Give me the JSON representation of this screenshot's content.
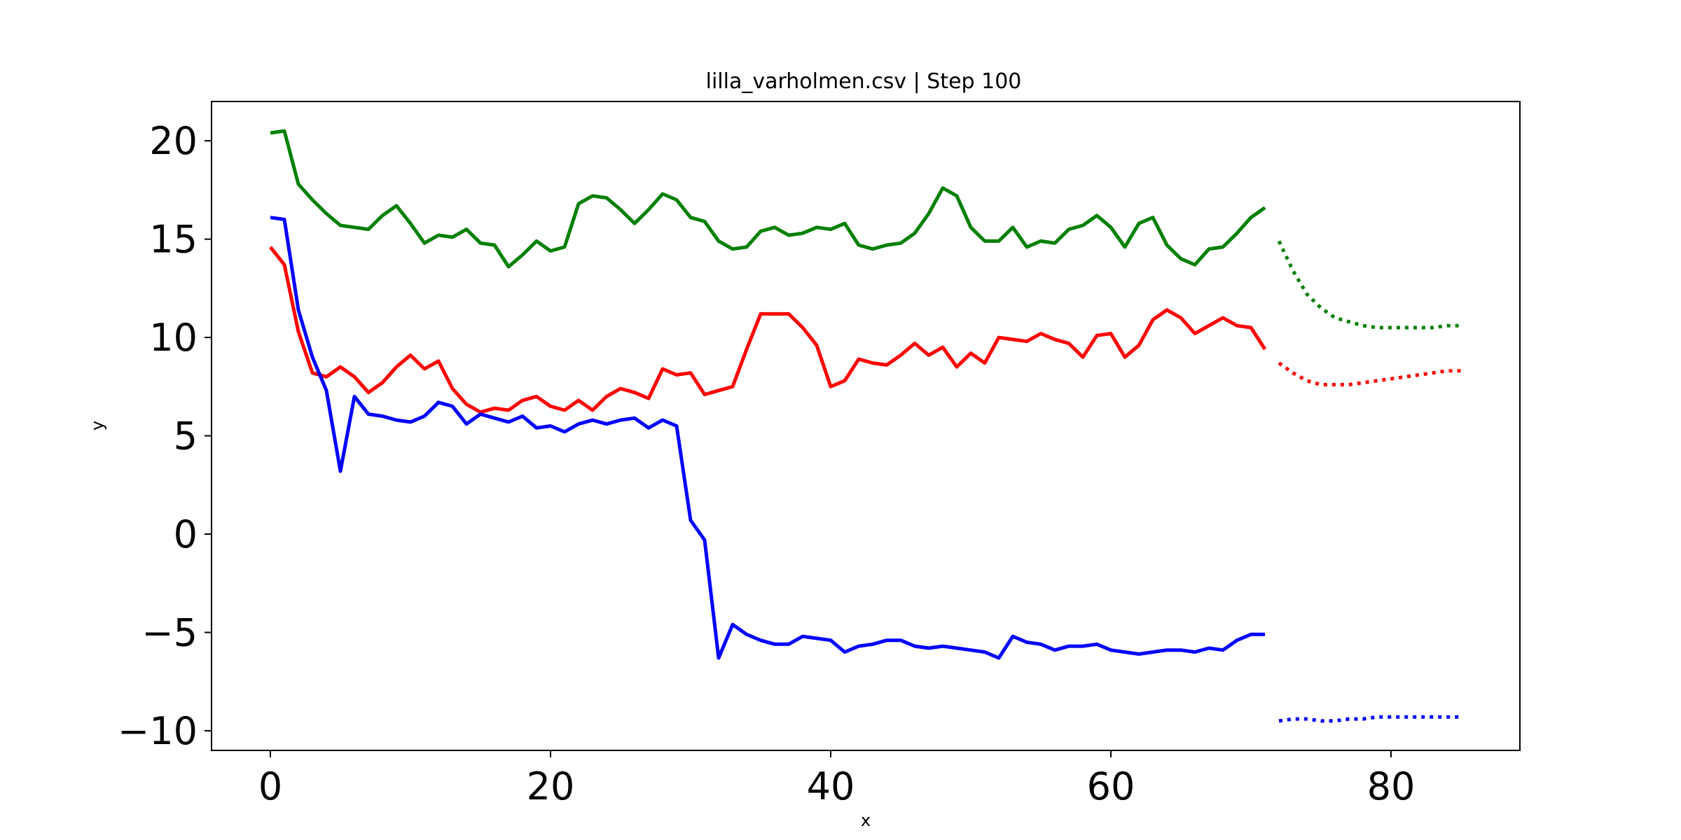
{
  "chart_data": {
    "type": "line",
    "title": "lilla_varholmen.csv | Step 100",
    "xlabel": "x",
    "ylabel": "y",
    "xlim": [
      -4.2,
      89.2
    ],
    "ylim": [
      -11,
      22
    ],
    "xticks": [
      0,
      20,
      40,
      60,
      80
    ],
    "yticks": [
      -10,
      -5,
      0,
      5,
      10,
      15,
      20
    ],
    "grid": false,
    "legend": "none",
    "series": [
      {
        "color": "#008000",
        "style": "solid",
        "x": [
          0,
          1,
          2,
          3,
          4,
          5,
          6,
          7,
          8,
          9,
          10,
          11,
          12,
          13,
          14,
          15,
          16,
          17,
          18,
          19,
          20,
          21,
          22,
          23,
          24,
          25,
          26,
          27,
          28,
          29,
          30,
          31,
          32,
          33,
          34,
          35,
          36,
          37,
          38,
          39,
          40,
          41,
          42,
          43,
          44,
          45,
          46,
          47,
          48,
          49,
          50,
          51,
          52,
          53,
          54,
          55,
          56,
          57,
          58,
          59,
          60,
          61,
          62,
          63,
          64,
          65,
          66,
          67,
          68,
          69,
          70,
          71
        ],
        "y": [
          20.4,
          20.5,
          17.8,
          17.0,
          16.3,
          15.7,
          15.6,
          15.5,
          16.2,
          16.7,
          15.8,
          14.8,
          15.2,
          15.1,
          15.5,
          14.8,
          14.7,
          13.6,
          14.2,
          14.9,
          14.4,
          14.6,
          16.8,
          17.2,
          17.1,
          16.5,
          15.8,
          16.5,
          17.3,
          17.0,
          16.1,
          15.9,
          14.9,
          14.5,
          14.6,
          15.4,
          15.6,
          15.2,
          15.3,
          15.6,
          15.5,
          15.8,
          14.7,
          14.5,
          14.7,
          14.8,
          15.3,
          16.3,
          17.6,
          17.2,
          15.6,
          14.9,
          14.9,
          15.6,
          14.6,
          14.9,
          14.8,
          15.5,
          15.7,
          16.2,
          15.6,
          14.6,
          15.8,
          16.1,
          14.7,
          14.0,
          13.7,
          14.5,
          14.6,
          15.3,
          16.1,
          16.6
        ]
      },
      {
        "color": "#ff0000",
        "style": "solid",
        "x": [
          0,
          1,
          2,
          3,
          4,
          5,
          6,
          7,
          8,
          9,
          10,
          11,
          12,
          13,
          14,
          15,
          16,
          17,
          18,
          19,
          20,
          21,
          22,
          23,
          24,
          25,
          26,
          27,
          28,
          29,
          30,
          31,
          32,
          33,
          34,
          35,
          36,
          37,
          38,
          39,
          40,
          41,
          42,
          43,
          44,
          45,
          46,
          47,
          48,
          49,
          50,
          51,
          52,
          53,
          54,
          55,
          56,
          57,
          58,
          59,
          60,
          61,
          62,
          63,
          64,
          65,
          66,
          67,
          68,
          69,
          70,
          71
        ],
        "y": [
          14.6,
          13.7,
          10.3,
          8.2,
          8.0,
          8.5,
          8.0,
          7.2,
          7.7,
          8.5,
          9.1,
          8.4,
          8.8,
          7.4,
          6.6,
          6.2,
          6.4,
          6.3,
          6.8,
          7.0,
          6.5,
          6.3,
          6.8,
          6.3,
          7.0,
          7.4,
          7.2,
          6.9,
          8.4,
          8.1,
          8.2,
          7.1,
          7.3,
          7.5,
          9.4,
          11.2,
          11.2,
          11.2,
          10.5,
          9.6,
          7.5,
          7.8,
          8.9,
          8.7,
          8.6,
          9.1,
          9.7,
          9.1,
          9.5,
          8.5,
          9.2,
          8.7,
          10.0,
          9.9,
          9.8,
          10.2,
          9.9,
          9.7,
          9.0,
          10.1,
          10.2,
          9.0,
          9.6,
          10.9,
          11.4,
          11.0,
          10.2,
          10.6,
          11.0,
          10.6,
          10.5,
          9.4
        ]
      },
      {
        "color": "#0000ff",
        "style": "solid",
        "x": [
          0,
          1,
          2,
          3,
          4,
          5,
          6,
          7,
          8,
          9,
          10,
          11,
          12,
          13,
          14,
          15,
          16,
          17,
          18,
          19,
          20,
          21,
          22,
          23,
          24,
          25,
          26,
          27,
          28,
          29,
          30,
          31,
          32,
          33,
          34,
          35,
          36,
          37,
          38,
          39,
          40,
          41,
          42,
          43,
          44,
          45,
          46,
          47,
          48,
          49,
          50,
          51,
          52,
          53,
          54,
          55,
          56,
          57,
          58,
          59,
          60,
          61,
          62,
          63,
          64,
          65,
          66,
          67,
          68,
          69,
          70,
          71
        ],
        "y": [
          16.1,
          16.0,
          11.4,
          9.0,
          7.3,
          3.2,
          7.0,
          6.1,
          6.0,
          5.8,
          5.7,
          6.0,
          6.7,
          6.5,
          5.6,
          6.1,
          5.9,
          5.7,
          6.0,
          5.4,
          5.5,
          5.2,
          5.6,
          5.8,
          5.6,
          5.8,
          5.9,
          5.4,
          5.8,
          5.5,
          0.7,
          -0.3,
          -6.3,
          -4.6,
          -5.1,
          -5.4,
          -5.6,
          -5.6,
          -5.2,
          -5.3,
          -5.4,
          -6.0,
          -5.7,
          -5.6,
          -5.4,
          -5.4,
          -5.7,
          -5.8,
          -5.7,
          -5.8,
          -5.9,
          -6.0,
          -6.3,
          -5.2,
          -5.5,
          -5.6,
          -5.9,
          -5.7,
          -5.7,
          -5.6,
          -5.9,
          -6.0,
          -6.1,
          -6.0,
          -5.9,
          -5.9,
          -6.0,
          -5.8,
          -5.9,
          -5.4,
          -5.1,
          -5.1
        ]
      },
      {
        "color": "#008000",
        "style": "dotted",
        "x": [
          72,
          73,
          74,
          75,
          76,
          77,
          78,
          79,
          80,
          81,
          82,
          83,
          84,
          85
        ],
        "y": [
          14.9,
          13.4,
          12.2,
          11.5,
          11.0,
          10.8,
          10.6,
          10.5,
          10.5,
          10.5,
          10.5,
          10.5,
          10.6,
          10.6
        ]
      },
      {
        "color": "#ff0000",
        "style": "dotted",
        "x": [
          72,
          73,
          74,
          75,
          76,
          77,
          78,
          79,
          80,
          81,
          82,
          83,
          84,
          85
        ],
        "y": [
          8.7,
          8.2,
          7.8,
          7.6,
          7.6,
          7.6,
          7.7,
          7.8,
          7.9,
          8.0,
          8.1,
          8.2,
          8.3,
          8.3
        ]
      },
      {
        "color": "#0000ff",
        "style": "dotted",
        "x": [
          72,
          73,
          74,
          75,
          76,
          77,
          78,
          79,
          80,
          81,
          82,
          83,
          84,
          85
        ],
        "y": [
          -9.5,
          -9.4,
          -9.4,
          -9.5,
          -9.5,
          -9.4,
          -9.4,
          -9.3,
          -9.3,
          -9.3,
          -9.3,
          -9.3,
          -9.3,
          -9.3
        ]
      }
    ]
  }
}
